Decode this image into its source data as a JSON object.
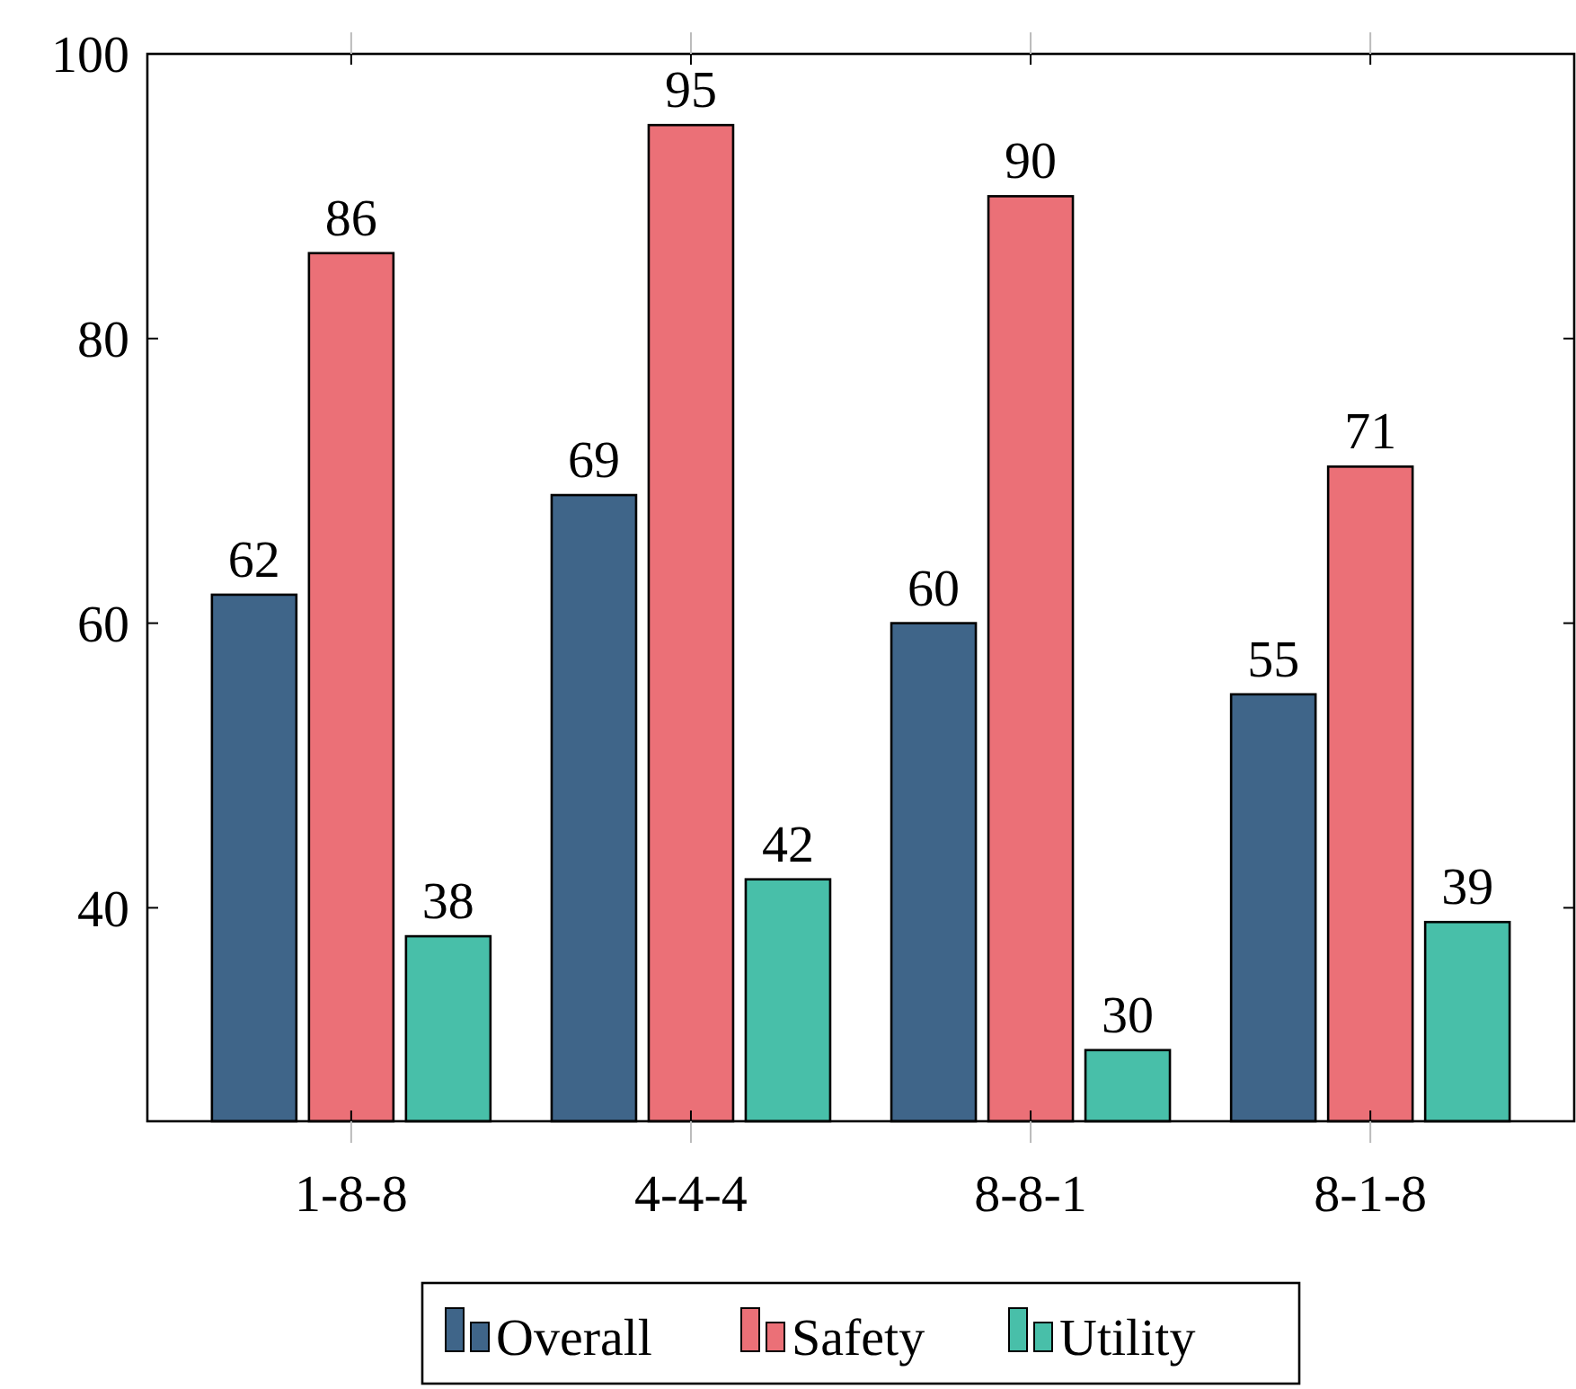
{
  "chart_data": {
    "type": "bar",
    "categories": [
      "1-8-8",
      "4-4-4",
      "8-8-1",
      "8-1-8"
    ],
    "series": [
      {
        "name": "Overall",
        "color": "#3f6589",
        "values": [
          62,
          69,
          60,
          55
        ]
      },
      {
        "name": "Safety",
        "color": "#eb7077",
        "values": [
          86,
          95,
          90,
          71
        ]
      },
      {
        "name": "Utility",
        "color": "#48bfa9",
        "values": [
          38,
          42,
          30,
          39
        ]
      }
    ],
    "ylim": [
      25,
      100
    ],
    "yticks": [
      40,
      60,
      80,
      100
    ],
    "grid": false,
    "legend": "bottom",
    "data_labels": true
  }
}
